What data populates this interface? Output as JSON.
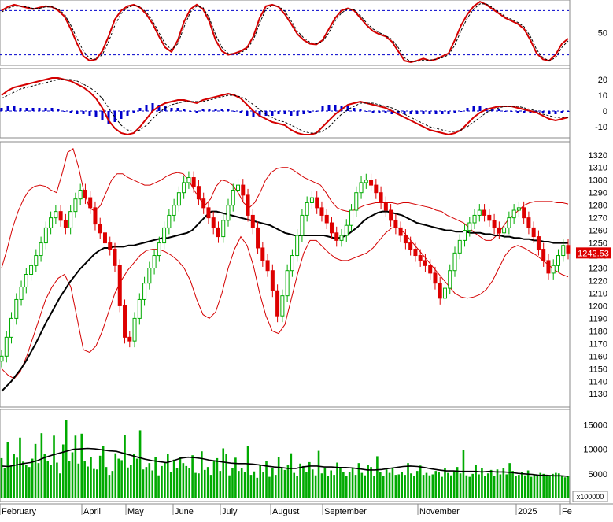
{
  "chart_data": [
    {
      "type": "line",
      "panel": "oscillator",
      "yticks": [
        50
      ],
      "reference_lines": [
        80,
        20
      ],
      "ylim": [
        10,
        90
      ],
      "series": [
        {
          "color": "#d40000",
          "style": "solid",
          "values": [
            80,
            85,
            88,
            86,
            84,
            82,
            84,
            86,
            85,
            80,
            72,
            55,
            35,
            18,
            12,
            14,
            25,
            45,
            68,
            80,
            86,
            88,
            84,
            75,
            62,
            45,
            30,
            24,
            40,
            65,
            82,
            88,
            82,
            65,
            40,
            25,
            20,
            22,
            25,
            30,
            45,
            70,
            86,
            88,
            85,
            75,
            62,
            48,
            40,
            35,
            34,
            40,
            55,
            70,
            80,
            83,
            80,
            70,
            60,
            52,
            48,
            45,
            38,
            25,
            12,
            10,
            12,
            15,
            12,
            14,
            18,
            22,
            40,
            60,
            75,
            86,
            92,
            88,
            82,
            76,
            70,
            66,
            62,
            55,
            40,
            22,
            14,
            12,
            20,
            35,
            42
          ]
        },
        {
          "color": "#000000",
          "style": "dashed",
          "values": [
            78,
            83,
            86,
            86,
            85,
            83,
            83,
            85,
            85,
            82,
            75,
            60,
            42,
            25,
            15,
            14,
            20,
            38,
            60,
            76,
            84,
            87,
            85,
            78,
            66,
            50,
            35,
            27,
            35,
            58,
            78,
            86,
            84,
            70,
            47,
            30,
            22,
            21,
            23,
            28,
            40,
            63,
            82,
            87,
            86,
            79,
            66,
            52,
            43,
            37,
            35,
            38,
            50,
            66,
            77,
            82,
            81,
            73,
            63,
            55,
            50,
            46,
            41,
            30,
            16,
            11,
            11,
            13,
            13,
            14,
            16,
            20,
            33,
            53,
            70,
            82,
            89,
            89,
            84,
            78,
            72,
            68,
            64,
            58,
            45,
            27,
            16,
            12,
            16,
            30,
            39
          ]
        }
      ]
    },
    {
      "type": "line",
      "panel": "macd",
      "yticks": [
        20,
        10,
        0,
        -10
      ],
      "ylim": [
        -15,
        25
      ],
      "series": [
        {
          "color": "#d40000",
          "style": "solid",
          "values": [
            10,
            13,
            15,
            16,
            17,
            18,
            19,
            20,
            21,
            21,
            20,
            19,
            17,
            15,
            12,
            8,
            2,
            -6,
            -11,
            -14,
            -15,
            -14,
            -10,
            -5,
            0,
            3,
            5,
            6,
            7,
            7,
            6,
            5,
            7,
            8,
            9,
            10,
            11,
            10,
            8,
            4,
            0,
            -3,
            -5,
            -7,
            -8,
            -9,
            -12,
            -14,
            -15,
            -15,
            -14,
            -10,
            -6,
            -2,
            1,
            4,
            5,
            6,
            5,
            4,
            3,
            2,
            0,
            -2,
            -4,
            -6,
            -8,
            -10,
            -12,
            -13,
            -14,
            -15,
            -14,
            -12,
            -8,
            -4,
            -1,
            1,
            2,
            3,
            3,
            3,
            2,
            1,
            0,
            -1,
            -3,
            -5,
            -6,
            -5,
            -4
          ]
        },
        {
          "color": "#000000",
          "style": "dashed",
          "values": [
            8,
            10,
            12,
            14,
            15,
            16,
            17,
            18,
            19,
            20,
            20,
            20,
            19,
            17,
            15,
            12,
            8,
            2,
            -4,
            -9,
            -12,
            -13,
            -12,
            -9,
            -5,
            -1,
            2,
            4,
            5,
            6,
            6,
            6,
            6,
            7,
            8,
            9,
            10,
            10,
            9,
            7,
            4,
            1,
            -2,
            -4,
            -6,
            -7,
            -9,
            -11,
            -13,
            -14,
            -14,
            -13,
            -10,
            -6,
            -2,
            1,
            3,
            5,
            5,
            5,
            4,
            3,
            2,
            0,
            -2,
            -4,
            -6,
            -8,
            -10,
            -11,
            -12,
            -13,
            -13,
            -12,
            -10,
            -7,
            -4,
            -1,
            1,
            2,
            3,
            3,
            3,
            2,
            1,
            0,
            -2,
            -3,
            -4,
            -4,
            -4
          ]
        },
        {
          "color": "#0000cc",
          "style": "histogram",
          "values": [
            2,
            3,
            3,
            2,
            2,
            2,
            2,
            2,
            2,
            1,
            0,
            -1,
            -2,
            -2,
            -3,
            -4,
            -6,
            -8,
            -7,
            -5,
            -3,
            -1,
            2,
            4,
            5,
            4,
            3,
            2,
            2,
            1,
            0,
            -1,
            1,
            1,
            1,
            1,
            1,
            0,
            -1,
            -3,
            -4,
            -4,
            -3,
            -3,
            -2,
            -2,
            -3,
            -3,
            -2,
            -1,
            0,
            3,
            4,
            4,
            3,
            3,
            2,
            1,
            0,
            -1,
            -1,
            -1,
            -2,
            -2,
            -2,
            -2,
            -2,
            -2,
            -2,
            -2,
            -2,
            -2,
            -1,
            0,
            2,
            3,
            3,
            2,
            1,
            1,
            0,
            0,
            -1,
            -1,
            -1,
            -1,
            -1,
            -2,
            -2,
            -1,
            0
          ]
        }
      ]
    },
    {
      "type": "candlestick",
      "panel": "price",
      "price_label": "1242.53",
      "yticks": [
        1320,
        1310,
        1300,
        1290,
        1280,
        1270,
        1260,
        1250,
        1240,
        1230,
        1220,
        1210,
        1200,
        1190,
        1180,
        1170,
        1160,
        1150,
        1140,
        1130
      ],
      "ylim": [
        1122,
        1328
      ],
      "ohlc_close": [
        1160,
        1175,
        1190,
        1205,
        1215,
        1225,
        1232,
        1240,
        1250,
        1262,
        1270,
        1275,
        1268,
        1262,
        1275,
        1285,
        1292,
        1286,
        1278,
        1265,
        1258,
        1250,
        1245,
        1232,
        1200,
        1175,
        1172,
        1190,
        1205,
        1218,
        1230,
        1240,
        1250,
        1262,
        1272,
        1280,
        1290,
        1298,
        1302,
        1295,
        1285,
        1278,
        1270,
        1262,
        1255,
        1268,
        1280,
        1292,
        1296,
        1288,
        1272,
        1262,
        1246,
        1236,
        1228,
        1212,
        1192,
        1208,
        1228,
        1240,
        1256,
        1272,
        1282,
        1286,
        1278,
        1272,
        1266,
        1258,
        1252,
        1256,
        1264,
        1276,
        1290,
        1298,
        1300,
        1296,
        1290,
        1282,
        1276,
        1268,
        1262,
        1256,
        1250,
        1245,
        1240,
        1236,
        1232,
        1226,
        1218,
        1206,
        1214,
        1228,
        1242,
        1252,
        1260,
        1266,
        1272,
        1276,
        1272,
        1268,
        1262,
        1258,
        1262,
        1270,
        1276,
        1278,
        1270,
        1262,
        1255,
        1245,
        1236,
        1226,
        1232,
        1240,
        1248,
        1242
      ],
      "ma_values": [
        1132,
        1136,
        1140,
        1145,
        1150,
        1156,
        1163,
        1170,
        1178,
        1186,
        1193,
        1200,
        1207,
        1213,
        1219,
        1224,
        1229,
        1233,
        1237,
        1241,
        1244,
        1246,
        1246,
        1247,
        1247,
        1247,
        1248,
        1248,
        1249,
        1250,
        1251,
        1252,
        1253,
        1254,
        1254,
        1255,
        1256,
        1257,
        1258,
        1260,
        1264,
        1268,
        1272,
        1275,
        1275,
        1274,
        1273,
        1272,
        1271,
        1270,
        1269,
        1268,
        1267,
        1266,
        1265,
        1264,
        1262,
        1260,
        1258,
        1257,
        1256,
        1256,
        1256,
        1256,
        1256,
        1256,
        1256,
        1255,
        1254,
        1254,
        1255,
        1257,
        1260,
        1263,
        1267,
        1270,
        1272,
        1274,
        1275,
        1275,
        1274,
        1273,
        1272,
        1270,
        1268,
        1266,
        1265,
        1264,
        1263,
        1262,
        1261,
        1260,
        1260,
        1259,
        1259,
        1259,
        1258,
        1258,
        1258,
        1257,
        1257,
        1256,
        1256,
        1255,
        1255,
        1254,
        1254,
        1253,
        1253,
        1252,
        1252,
        1251,
        1251,
        1250,
        1250,
        1250,
        1250
      ],
      "bb_upper": [
        1230,
        1245,
        1262,
        1275,
        1285,
        1292,
        1295,
        1296,
        1295,
        1292,
        1290,
        1305,
        1322,
        1325,
        1310,
        1290,
        1278,
        1275,
        1280,
        1290,
        1300,
        1305,
        1305,
        1302,
        1300,
        1298,
        1296,
        1296,
        1298,
        1300,
        1303,
        1305,
        1306,
        1305,
        1300,
        1292,
        1285,
        1280,
        1285,
        1295,
        1300,
        1299,
        1296,
        1290,
        1282,
        1278,
        1282,
        1290,
        1300,
        1306,
        1309,
        1310,
        1310,
        1308,
        1305,
        1302,
        1300,
        1298,
        1296,
        1290,
        1283,
        1278,
        1276,
        1275,
        1276,
        1278,
        1280,
        1281,
        1282,
        1282,
        1282,
        1282,
        1281,
        1282,
        1282,
        1281,
        1280,
        1279,
        1278,
        1276,
        1275,
        1272,
        1270,
        1268,
        1266,
        1262,
        1258,
        1255,
        1252,
        1252,
        1256,
        1262,
        1268,
        1272,
        1276,
        1280,
        1282,
        1283,
        1283,
        1283,
        1283,
        1282,
        1282,
        1281
      ],
      "bb_lower": [
        1150,
        1145,
        1142,
        1148,
        1160,
        1175,
        1190,
        1205,
        1215,
        1222,
        1225,
        1215,
        1190,
        1165,
        1163,
        1168,
        1180,
        1195,
        1210,
        1220,
        1228,
        1234,
        1240,
        1244,
        1245,
        1245,
        1243,
        1240,
        1236,
        1230,
        1220,
        1205,
        1193,
        1190,
        1195,
        1210,
        1230,
        1245,
        1255,
        1248,
        1232,
        1210,
        1192,
        1180,
        1178,
        1185,
        1205,
        1225,
        1242,
        1252,
        1252,
        1247,
        1242,
        1238,
        1236,
        1236,
        1238,
        1240,
        1242,
        1246,
        1252,
        1258,
        1262,
        1262,
        1258,
        1252,
        1246,
        1240,
        1234,
        1228,
        1222,
        1216,
        1210,
        1207,
        1206,
        1207,
        1209,
        1213,
        1220,
        1230,
        1240,
        1246,
        1248,
        1246,
        1243,
        1240,
        1236,
        1232,
        1228,
        1225,
        1223
      ]
    },
    {
      "type": "bar",
      "panel": "volume",
      "unit_label": "x100000",
      "yticks": [
        15000,
        10000,
        5000
      ],
      "ylim": [
        0,
        17500
      ],
      "values": [
        8200,
        6100,
        11400,
        6700,
        9000,
        8300,
        12400,
        7500,
        6900,
        6400,
        8100,
        11100,
        7200,
        13300,
        9100,
        7700,
        6800,
        12800,
        7300,
        5100,
        11000,
        15900,
        7600,
        9400,
        12800,
        7100,
        13200,
        7700,
        6500,
        8400,
        6000,
        5900,
        8700,
        10600,
        6400,
        4800,
        5600,
        9200,
        8100,
        7800,
        12900,
        6300,
        6800,
        9000,
        8100,
        13900,
        5900,
        6400,
        7200,
        5700,
        8400,
        4700,
        6600,
        7400,
        9100,
        5300,
        7900,
        6200,
        8500,
        7200,
        6600,
        6100,
        8800,
        5200,
        5100,
        9600,
        5800,
        6400,
        4800,
        7600,
        8200,
        5600,
        10200,
        9100,
        4700,
        6200,
        8300,
        5600,
        6100,
        5300,
        10700,
        4800,
        5500,
        4200,
        6900,
        5300,
        7700,
        4400,
        6100,
        4800,
        8400,
        6300,
        5800,
        6900,
        9200,
        5200,
        4600,
        7100,
        6600,
        5300,
        7400,
        5900,
        4700,
        9700,
        5100,
        6200,
        4600,
        5700,
        4800,
        7300,
        6200,
        5400,
        4600,
        5300,
        6100,
        4800,
        7200,
        5200,
        4700,
        6900,
        6400,
        4500,
        8600,
        5400,
        4500,
        5900,
        5200,
        6100,
        4800,
        4900,
        5400,
        4800,
        7200,
        5100,
        4600,
        5600,
        6700,
        4800,
        5200,
        4700,
        4900,
        5600,
        5400,
        4400,
        6100,
        5200,
        4700,
        5700,
        6400,
        5100,
        9900,
        4700,
        4400,
        5000,
        6800,
        4900,
        6200,
        4600,
        5100,
        5800,
        4600,
        5900,
        4900,
        6100,
        4900,
        7200,
        5600,
        4500,
        4800,
        5300,
        4700,
        5700,
        4400,
        4900,
        4800,
        5200,
        5000,
        4800,
        4500,
        5000,
        5200,
        5100,
        4600,
        4300,
        4600
      ],
      "ma_values": [
        6600,
        6500,
        6800,
        7100,
        7300,
        7700,
        8300,
        8800,
        9200,
        9600,
        10000,
        10100,
        10200,
        10100,
        9900,
        9700,
        9600,
        9200,
        8800,
        8400,
        8000,
        7700,
        7500,
        7300,
        7700,
        8200,
        8400,
        8300,
        8100,
        7800,
        7600,
        7400,
        7200,
        7100,
        7100,
        7000,
        6800,
        6600,
        6400,
        6300,
        6100,
        6100,
        6400,
        6600,
        6600,
        6400,
        6400,
        6300,
        6300,
        6200,
        6000,
        5800,
        5800,
        5900,
        6100,
        6300,
        6500,
        6600,
        6500,
        6300,
        6000,
        5800,
        5600,
        5600,
        5500,
        5500,
        5500,
        5400,
        5500,
        5400,
        5400,
        5300,
        5100,
        5000,
        4900,
        4700,
        4700,
        4600,
        4600,
        4500
      ]
    }
  ],
  "x_axis_labels": [
    "February",
    "April",
    "May",
    "June",
    "July",
    "August",
    "September",
    "November",
    "2025",
    "Fe"
  ],
  "colors": {
    "up": "#00aa00",
    "down": "#dd0000",
    "indicator": "#d40000",
    "reference": "#0000cc",
    "label_bg": "#dd0000"
  }
}
